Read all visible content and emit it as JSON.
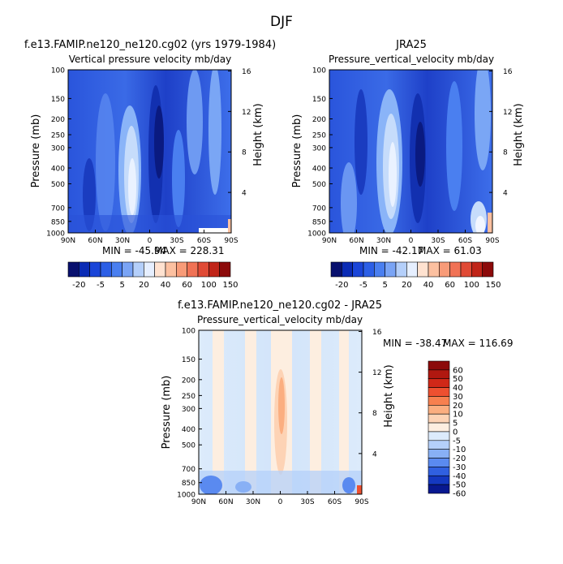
{
  "figure_title": "DJF",
  "chart_data": [
    {
      "type": "heatmap",
      "title": "f.e13.FAMIP.ne120_ne120.cg02 (yrs 1979-1984)",
      "subtitle": "Vertical pressure velocity mb/day",
      "ylabel": "Pressure (mb)",
      "y2label": "Height (km)",
      "x_ticks": [
        "90N",
        "60N",
        "30N",
        "0",
        "30S",
        "60S",
        "90S"
      ],
      "y_ticks": [
        "100",
        "150",
        "200",
        "250",
        "300",
        "400",
        "500",
        "700",
        "850",
        "1000"
      ],
      "y2_ticks": [
        "16",
        "12",
        "8",
        "4"
      ],
      "min_label": "MIN = -45.94",
      "max_label": "MAX = 228.31",
      "colorbar_labels": [
        "-20",
        "-5",
        "5",
        "20",
        "40",
        "60",
        "100",
        "150"
      ]
    },
    {
      "type": "heatmap",
      "title": "JRA25",
      "subtitle": "Pressure_vertical_velocity mb/day",
      "ylabel": "Pressure (mb)",
      "y2label": "Height (km)",
      "x_ticks": [
        "90N",
        "60N",
        "30N",
        "0",
        "30S",
        "60S",
        "90S"
      ],
      "y_ticks": [
        "100",
        "150",
        "200",
        "250",
        "300",
        "400",
        "500",
        "700",
        "850",
        "1000"
      ],
      "y2_ticks": [
        "16",
        "12",
        "8",
        "4"
      ],
      "min_label": "MIN = -42.17",
      "max_label": "MAX = 61.03",
      "colorbar_labels": [
        "-20",
        "-5",
        "5",
        "20",
        "40",
        "60",
        "100",
        "150"
      ]
    },
    {
      "type": "heatmap",
      "title": "f.e13.FAMIP.ne120_ne120.cg02 - JRA25",
      "subtitle": "Pressure_vertical_velocity mb/day",
      "ylabel": "Pressure (mb)",
      "y2label": "Height (km)",
      "x_ticks": [
        "90N",
        "60N",
        "30N",
        "0",
        "30S",
        "60S",
        "90S"
      ],
      "y_ticks": [
        "100",
        "150",
        "200",
        "250",
        "300",
        "400",
        "500",
        "700",
        "850",
        "1000"
      ],
      "y2_ticks": [
        "16",
        "12",
        "8",
        "4"
      ],
      "min_label": "MIN = -38.47",
      "max_label": "MAX = 116.69",
      "colorbar_labels": [
        "60",
        "50",
        "40",
        "30",
        "20",
        "10",
        "5",
        "0",
        "-5",
        "-10",
        "-20",
        "-30",
        "-40",
        "-50",
        "-60"
      ]
    }
  ],
  "colors": {
    "abs_scale": [
      "#08106e",
      "#0a2bb5",
      "#1a45d8",
      "#2c5fe6",
      "#4a7ff0",
      "#7aa4f5",
      "#b4cffa",
      "#e6efff",
      "#ffe2d0",
      "#fcc0a0",
      "#f89b78",
      "#f07255",
      "#e04a35",
      "#c02418",
      "#8c0a0a"
    ],
    "diff_scale": [
      "#8c0a0a",
      "#b01810",
      "#d02818",
      "#ee5030",
      "#f7804f",
      "#fbae80",
      "#fdd3b5",
      "#fdeee0",
      "#dcebfc",
      "#b4d0fa",
      "#88b0f5",
      "#5a8af0",
      "#3060e0",
      "#1438c0",
      "#081890"
    ],
    "panel_bg_blue": "#2f5ae0",
    "panel_bg_diff": "#d4e6fb"
  }
}
